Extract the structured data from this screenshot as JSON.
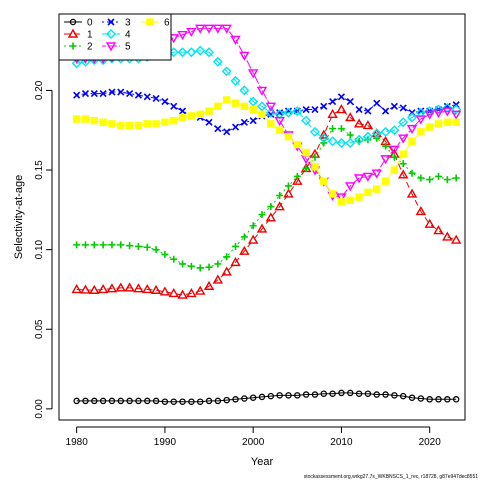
{
  "chart_data": {
    "type": "line",
    "xlabel": "Year",
    "ylabel": "Selectivity-at-age",
    "xlim": [
      1978,
      2024
    ],
    "ylim": [
      -0.007,
      0.248
    ],
    "xticks": [
      1980,
      1990,
      2000,
      2010,
      2020
    ],
    "yticks": [
      0.0,
      0.05,
      0.1,
      0.15,
      0.2
    ],
    "ytick_labels": [
      "0.00",
      "0.05",
      "0.10",
      "0.15",
      "0.20"
    ],
    "legend_position": "top-left",
    "footer": "stockassessment.org,wrkg27.7s_WKBNSCS_1_rec, r18728, g87e947dec8551",
    "x": [
      1980,
      1981,
      1982,
      1983,
      1984,
      1985,
      1986,
      1987,
      1988,
      1989,
      1990,
      1991,
      1992,
      1993,
      1994,
      1995,
      1996,
      1997,
      1998,
      1999,
      2000,
      2001,
      2002,
      2003,
      2004,
      2005,
      2006,
      2007,
      2008,
      2009,
      2010,
      2011,
      2012,
      2013,
      2014,
      2015,
      2016,
      2017,
      2018,
      2019,
      2020,
      2021,
      2022,
      2023
    ],
    "series": [
      {
        "name": "0",
        "color": "#000000",
        "marker": "circle",
        "lineStyle": "solid",
        "values": [
          0.005,
          0.005,
          0.005,
          0.005,
          0.005,
          0.005,
          0.005,
          0.005,
          0.005,
          0.005,
          0.0045,
          0.0045,
          0.0045,
          0.0045,
          0.0045,
          0.005,
          0.005,
          0.0055,
          0.006,
          0.0065,
          0.007,
          0.0075,
          0.008,
          0.0085,
          0.0085,
          0.0085,
          0.009,
          0.009,
          0.0095,
          0.0095,
          0.01,
          0.01,
          0.0095,
          0.0095,
          0.009,
          0.009,
          0.0085,
          0.008,
          0.007,
          0.0065,
          0.006,
          0.006,
          0.006,
          0.006
        ]
      },
      {
        "name": "1",
        "color": "#ee0000",
        "marker": "triangle",
        "lineStyle": "dashed",
        "values": [
          0.075,
          0.0747,
          0.0745,
          0.075,
          0.0755,
          0.076,
          0.076,
          0.0755,
          0.075,
          0.0745,
          0.0735,
          0.0725,
          0.0715,
          0.0725,
          0.074,
          0.077,
          0.081,
          0.086,
          0.092,
          0.099,
          0.106,
          0.113,
          0.12,
          0.127,
          0.135,
          0.143,
          0.151,
          0.16,
          0.172,
          0.185,
          0.188,
          0.183,
          0.179,
          0.178,
          0.173,
          0.168,
          0.16,
          0.147,
          0.135,
          0.124,
          0.116,
          0.112,
          0.108,
          0.106
        ]
      },
      {
        "name": "2",
        "color": "#00cc00",
        "marker": "plus",
        "lineStyle": "dotted",
        "values": [
          0.103,
          0.103,
          0.103,
          0.103,
          0.103,
          0.103,
          0.1025,
          0.102,
          0.1015,
          0.1,
          0.097,
          0.094,
          0.091,
          0.0895,
          0.0885,
          0.089,
          0.091,
          0.0955,
          0.102,
          0.108,
          0.115,
          0.122,
          0.127,
          0.134,
          0.14,
          0.146,
          0.151,
          0.158,
          0.167,
          0.176,
          0.176,
          0.172,
          0.168,
          0.169,
          0.17,
          0.165,
          0.158,
          0.154,
          0.148,
          0.145,
          0.144,
          0.146,
          0.144,
          0.145
        ]
      },
      {
        "name": "3",
        "color": "#0000ff",
        "marker": "x",
        "lineStyle": "dotdash",
        "values": [
          0.197,
          0.198,
          0.198,
          0.198,
          0.199,
          0.199,
          0.198,
          0.197,
          0.196,
          0.195,
          0.193,
          0.19,
          0.187,
          0.184,
          0.183,
          0.18,
          0.176,
          0.174,
          0.177,
          0.18,
          0.181,
          0.184,
          0.185,
          0.186,
          0.187,
          0.187,
          0.188,
          0.188,
          0.19,
          0.193,
          0.196,
          0.193,
          0.188,
          0.187,
          0.192,
          0.187,
          0.19,
          0.189,
          0.186,
          0.187,
          0.187,
          0.188,
          0.19,
          0.191
        ]
      },
      {
        "name": "4",
        "color": "#00e5ee",
        "marker": "diamond",
        "lineStyle": "longdash",
        "values": [
          0.217,
          0.218,
          0.219,
          0.219,
          0.22,
          0.22,
          0.22,
          0.22,
          0.221,
          0.222,
          0.223,
          0.224,
          0.224,
          0.224,
          0.225,
          0.224,
          0.218,
          0.212,
          0.206,
          0.2,
          0.193,
          0.19,
          0.186,
          0.185,
          0.186,
          0.187,
          0.181,
          0.174,
          0.17,
          0.168,
          0.167,
          0.167,
          0.169,
          0.171,
          0.173,
          0.174,
          0.175,
          0.18,
          0.183,
          0.186,
          0.187,
          0.188,
          0.189,
          0.188
        ]
      },
      {
        "name": "5",
        "color": "#ff00ff",
        "marker": "triangle-down",
        "lineStyle": "twodash",
        "values": [
          0.22,
          0.22,
          0.22,
          0.22,
          0.221,
          0.222,
          0.223,
          0.225,
          0.227,
          0.229,
          0.231,
          0.233,
          0.235,
          0.237,
          0.239,
          0.239,
          0.239,
          0.239,
          0.232,
          0.222,
          0.211,
          0.2,
          0.19,
          0.181,
          0.172,
          0.165,
          0.157,
          0.15,
          0.143,
          0.134,
          0.133,
          0.14,
          0.145,
          0.146,
          0.148,
          0.157,
          0.163,
          0.17,
          0.176,
          0.182,
          0.185,
          0.186,
          0.187,
          0.185
        ]
      },
      {
        "name": "6",
        "color": "#ffff00",
        "marker": "square",
        "lineStyle": "solid",
        "values": [
          0.182,
          0.182,
          0.181,
          0.18,
          0.179,
          0.178,
          0.178,
          0.178,
          0.179,
          0.179,
          0.18,
          0.181,
          0.183,
          0.184,
          0.185,
          0.187,
          0.19,
          0.194,
          0.192,
          0.19,
          0.188,
          0.185,
          0.179,
          0.175,
          0.171,
          0.166,
          0.161,
          0.152,
          0.143,
          0.135,
          0.13,
          0.131,
          0.133,
          0.136,
          0.138,
          0.143,
          0.15,
          0.16,
          0.168,
          0.174,
          0.177,
          0.179,
          0.18,
          0.18
        ]
      }
    ]
  }
}
